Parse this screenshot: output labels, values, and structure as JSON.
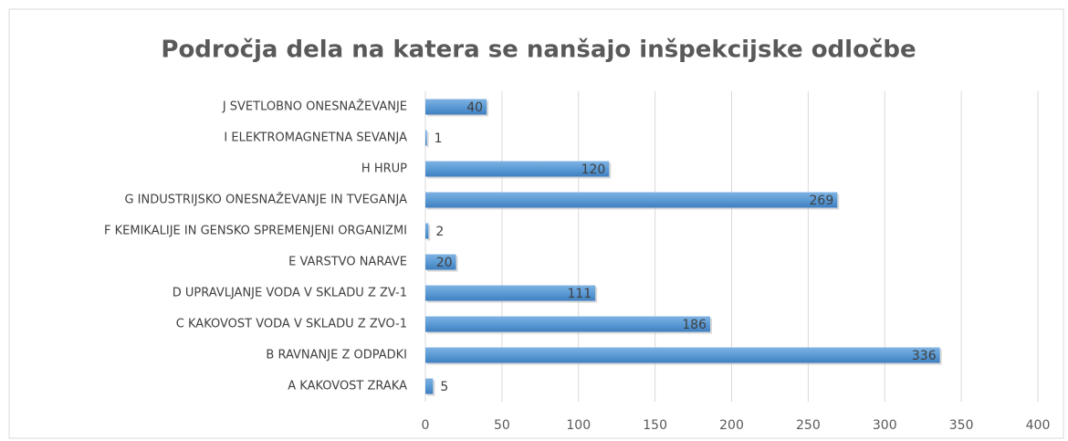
{
  "chart_data": {
    "type": "bar",
    "orientation": "horizontal",
    "title": "Področja dela na katera se nanšajo inšpekcijske odločbe",
    "categories": [
      "J SVETLOBNO ONESNAŽEVANJE",
      "I ELEKTROMAGNETNA SEVANJA",
      "H HRUP",
      "G INDUSTRIJSKO ONESNAŽEVANJE IN TVEGANJA",
      "F KEMIKALIJE IN GENSKO SPREMENJENI ORGANIZMI",
      "E VARSTVO NARAVE",
      "D UPRAVLJANJE VODA V SKLADU Z ZV-1",
      "C KAKOVOST VODA V SKLADU Z ZVO-1",
      "B RAVNANJE Z ODPADKI",
      "A KAKOVOST ZRAKA"
    ],
    "values": [
      40,
      1,
      120,
      269,
      2,
      20,
      111,
      186,
      336,
      5
    ],
    "color": "#5b9bd5",
    "xlim": [
      0,
      400
    ],
    "xticks": [
      0,
      50,
      100,
      150,
      200,
      250,
      300,
      350,
      400
    ],
    "grid": true
  }
}
